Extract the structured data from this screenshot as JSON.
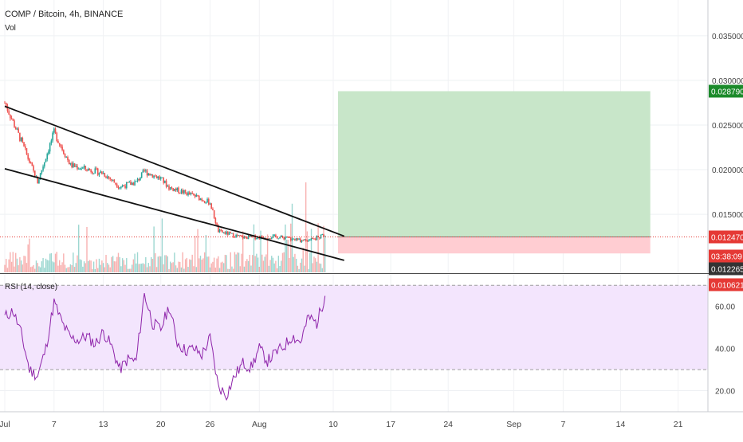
{
  "header": {
    "symbol_line": "COMP / Bitcoin, 4h, BINANCE",
    "vol_label": "Vol",
    "rsi_label": "RSI (14, close)"
  },
  "colors": {
    "up": "#26a69a",
    "down": "#ef5350",
    "rsi_line": "#8e24aa",
    "rsi_band": "#f3e5fd",
    "target_zone": "#c8e6c9",
    "stop_zone": "#ffcdd2",
    "target_badge": "#1b8a2a",
    "current_badge": "#e53935",
    "timer_badge": "#e53935",
    "level_badge": "#333333",
    "stop_badge": "#e53935"
  },
  "price_axis": {
    "ticks": [
      "0.035000",
      "0.030000",
      "0.025000",
      "0.020000",
      "0.015000"
    ],
    "badges": [
      {
        "name": "target",
        "text": "0.028790",
        "value": 0.02879
      },
      {
        "name": "current",
        "text": "0.012470",
        "value": 0.01247
      },
      {
        "name": "timer",
        "text": "03:38:09",
        "value": 0.01247
      },
      {
        "name": "level",
        "text": "0.012265",
        "value": 0.012265
      },
      {
        "name": "stop",
        "text": "0.010621",
        "value": 0.010621
      }
    ]
  },
  "rsi_axis": {
    "ticks": [
      "60.00",
      "40.00",
      "20.00"
    ]
  },
  "time_axis": {
    "labels": [
      "Jul",
      "7",
      "13",
      "20",
      "26",
      "Aug",
      "10",
      "17",
      "24",
      "Sep",
      "7",
      "14",
      "21"
    ]
  },
  "chart_data": [
    {
      "type": "line",
      "title": "COMP / Bitcoin, 4h, BINANCE",
      "x_range": [
        "Jul 1",
        "Aug 9"
      ],
      "ylim": [
        0.0085,
        0.039
      ],
      "close_series": [
        {
          "x": "Jul 1",
          "y": 0.0275
        },
        {
          "x": "Jul 3",
          "y": 0.0232
        },
        {
          "x": "Jul 5",
          "y": 0.0186
        },
        {
          "x": "Jul 7",
          "y": 0.0242
        },
        {
          "x": "Jul 9",
          "y": 0.0205
        },
        {
          "x": "Jul 13",
          "y": 0.0196
        },
        {
          "x": "Jul 15",
          "y": 0.0181
        },
        {
          "x": "Jul 17",
          "y": 0.0186
        },
        {
          "x": "Jul 18",
          "y": 0.0198
        },
        {
          "x": "Jul 20",
          "y": 0.019
        },
        {
          "x": "Jul 21",
          "y": 0.018
        },
        {
          "x": "Jul 24",
          "y": 0.0171
        },
        {
          "x": "Jul 26",
          "y": 0.0163
        },
        {
          "x": "Jul 27",
          "y": 0.0131
        },
        {
          "x": "Jul 30",
          "y": 0.0124
        },
        {
          "x": "Aug 3",
          "y": 0.0125
        },
        {
          "x": "Aug 6",
          "y": 0.0121
        },
        {
          "x": "Aug 8",
          "y": 0.0124
        },
        {
          "x": "Aug 9",
          "y": 0.0127
        }
      ],
      "channel_upper": [
        {
          "x": "Jul 1",
          "y": 0.0271
        },
        {
          "x": "Aug 9",
          "y": 0.0125
        }
      ],
      "channel_lower": [
        {
          "x": "Jul 1",
          "y": 0.0201
        },
        {
          "x": "Aug 9",
          "y": 0.0098
        }
      ],
      "current_price_line": 0.01247,
      "long_position": {
        "entry": 0.01247,
        "target": 0.02879,
        "stop": 0.010621,
        "x_from": "Aug 10",
        "x_to": "Sep 18"
      }
    },
    {
      "type": "line",
      "title": "RSI (14, close)",
      "ylim": [
        10,
        75
      ],
      "bands": [
        30,
        70
      ],
      "values": [
        {
          "x": "Jul 1",
          "y": 55
        },
        {
          "x": "Jul 2",
          "y": 58
        },
        {
          "x": "Jul 3",
          "y": 47
        },
        {
          "x": "Jul 4",
          "y": 30
        },
        {
          "x": "Jul 5",
          "y": 27
        },
        {
          "x": "Jul 6",
          "y": 40
        },
        {
          "x": "Jul 7",
          "y": 62
        },
        {
          "x": "Jul 8",
          "y": 52
        },
        {
          "x": "Jul 9",
          "y": 45
        },
        {
          "x": "Jul 10",
          "y": 44
        },
        {
          "x": "Jul 11",
          "y": 46
        },
        {
          "x": "Jul 12",
          "y": 42
        },
        {
          "x": "Jul 13",
          "y": 48
        },
        {
          "x": "Jul 14",
          "y": 41
        },
        {
          "x": "Jul 15",
          "y": 30
        },
        {
          "x": "Jul 16",
          "y": 35
        },
        {
          "x": "Jul 17",
          "y": 34
        },
        {
          "x": "Jul 18",
          "y": 66
        },
        {
          "x": "Jul 19",
          "y": 52
        },
        {
          "x": "Jul 20",
          "y": 49
        },
        {
          "x": "Jul 21",
          "y": 60
        },
        {
          "x": "Jul 22",
          "y": 43
        },
        {
          "x": "Jul 23",
          "y": 39
        },
        {
          "x": "Jul 24",
          "y": 40
        },
        {
          "x": "Jul 25",
          "y": 37
        },
        {
          "x": "Jul 26",
          "y": 45
        },
        {
          "x": "Jul 27",
          "y": 22
        },
        {
          "x": "Jul 28",
          "y": 18
        },
        {
          "x": "Jul 29",
          "y": 27
        },
        {
          "x": "Jul 30",
          "y": 33
        },
        {
          "x": "Jul 31",
          "y": 31
        },
        {
          "x": "Aug 1",
          "y": 40
        },
        {
          "x": "Aug 2",
          "y": 34
        },
        {
          "x": "Aug 3",
          "y": 38
        },
        {
          "x": "Aug 4",
          "y": 41
        },
        {
          "x": "Aug 5",
          "y": 46
        },
        {
          "x": "Aug 6",
          "y": 43
        },
        {
          "x": "Aug 7",
          "y": 55
        },
        {
          "x": "Aug 8",
          "y": 52
        },
        {
          "x": "Aug 9",
          "y": 65
        }
      ]
    }
  ]
}
